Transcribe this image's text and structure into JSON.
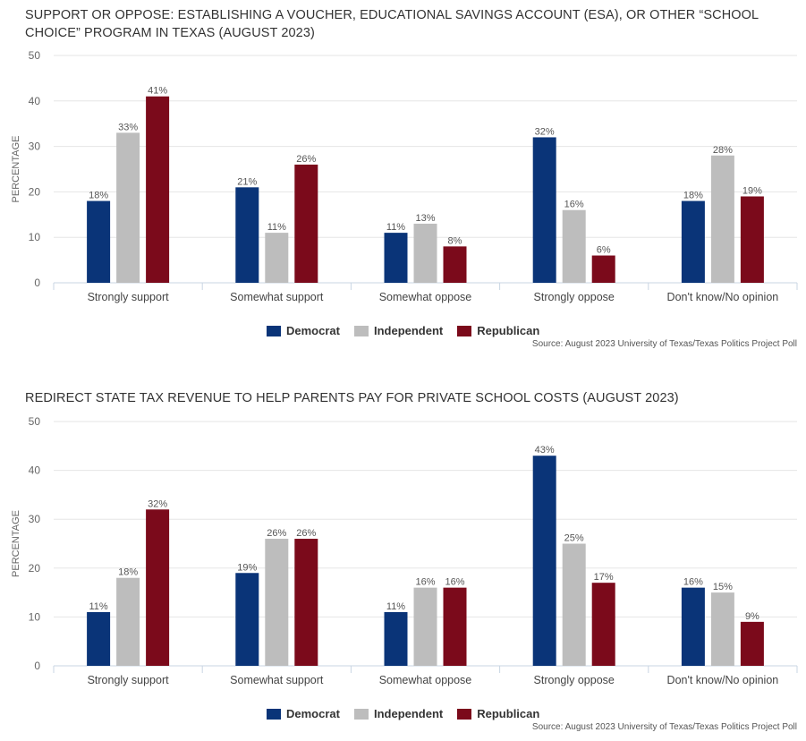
{
  "colors": {
    "Democrat": "#0a3478",
    "Independent": "#bdbdbd",
    "Republican": "#7b0a1b",
    "grid": "#e6e6e6",
    "axis": "#c9d6e3"
  },
  "chart_data": [
    {
      "type": "bar",
      "title": "SUPPORT OR OPPOSE: ESTABLISHING A VOUCHER, EDUCATIONAL SAVINGS ACCOUNT (ESA), OR OTHER “SCHOOL CHOICE” PROGRAM IN TEXAS (AUGUST 2023)",
      "ylabel": "PERCENTAGE",
      "xlabel": "",
      "ylim": [
        0,
        50
      ],
      "yticks": [
        0,
        10,
        20,
        30,
        40,
        50
      ],
      "categories": [
        "Strongly support",
        "Somewhat support",
        "Somewhat oppose",
        "Strongly oppose",
        "Don't know/No opinion"
      ],
      "series": [
        {
          "name": "Democrat",
          "values": [
            18,
            21,
            11,
            32,
            18
          ]
        },
        {
          "name": "Independent",
          "values": [
            33,
            11,
            13,
            16,
            28
          ]
        },
        {
          "name": "Republican",
          "values": [
            41,
            26,
            8,
            6,
            19
          ]
        }
      ],
      "value_suffix": "%",
      "legend_position": "bottom-center",
      "source": "Source: August 2023 University of Texas/Texas Politics Project Poll"
    },
    {
      "type": "bar",
      "title": "REDIRECT STATE TAX REVENUE TO HELP PARENTS PAY FOR PRIVATE SCHOOL COSTS (AUGUST 2023)",
      "ylabel": "PERCENTAGE",
      "xlabel": "",
      "ylim": [
        0,
        50
      ],
      "yticks": [
        0,
        10,
        20,
        30,
        40,
        50
      ],
      "categories": [
        "Strongly support",
        "Somewhat support",
        "Somewhat oppose",
        "Strongly oppose",
        "Don't know/No opinion"
      ],
      "series": [
        {
          "name": "Democrat",
          "values": [
            11,
            19,
            11,
            43,
            16
          ]
        },
        {
          "name": "Independent",
          "values": [
            18,
            26,
            16,
            25,
            15
          ]
        },
        {
          "name": "Republican",
          "values": [
            32,
            26,
            16,
            17,
            9
          ]
        }
      ],
      "value_suffix": "%",
      "legend_position": "bottom-center",
      "source": "Source: August 2023 University of Texas/Texas Politics Project Poll"
    }
  ]
}
